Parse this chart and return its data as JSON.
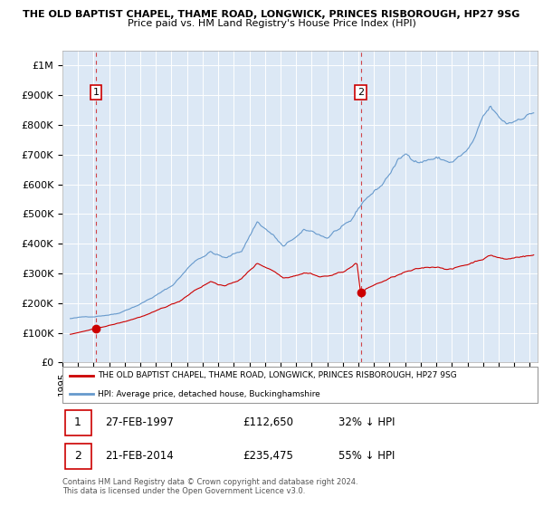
{
  "title": "THE OLD BAPTIST CHAPEL, THAME ROAD, LONGWICK, PRINCES RISBOROUGH, HP27 9SG",
  "subtitle": "Price paid vs. HM Land Registry's House Price Index (HPI)",
  "legend_label_red": "THE OLD BAPTIST CHAPEL, THAME ROAD, LONGWICK, PRINCES RISBOROUGH, HP27 9SG",
  "legend_label_blue": "HPI: Average price, detached house, Buckinghamshire",
  "transaction_1_date": "27-FEB-1997",
  "transaction_1_price": "£112,650",
  "transaction_1_hpi": "32% ↓ HPI",
  "transaction_1_year": 1997.15,
  "transaction_1_value": 112650,
  "transaction_2_date": "21-FEB-2014",
  "transaction_2_price": "£235,475",
  "transaction_2_hpi": "55% ↓ HPI",
  "transaction_2_year": 2014.15,
  "transaction_2_value": 235475,
  "footer": "Contains HM Land Registry data © Crown copyright and database right 2024.\nThis data is licensed under the Open Government Licence v3.0.",
  "ylim": [
    0,
    1050000
  ],
  "xlim_start": 1995.3,
  "xlim_end": 2025.5,
  "background_color": "#dce8f5",
  "red_color": "#cc0000",
  "blue_color": "#6699cc",
  "grid_color": "#ffffff",
  "yticks": [
    0,
    100000,
    200000,
    300000,
    400000,
    500000,
    600000,
    700000,
    800000,
    900000,
    1000000
  ],
  "ytick_labels": [
    "£0",
    "£100K",
    "£200K",
    "£300K",
    "£400K",
    "£500K",
    "£600K",
    "£700K",
    "£800K",
    "£900K",
    "£1M"
  ],
  "xticks": [
    1995,
    1996,
    1997,
    1998,
    1999,
    2000,
    2001,
    2002,
    2003,
    2004,
    2005,
    2006,
    2007,
    2008,
    2009,
    2010,
    2011,
    2012,
    2013,
    2014,
    2015,
    2016,
    2017,
    2018,
    2019,
    2020,
    2021,
    2022,
    2023,
    2024,
    2025
  ]
}
